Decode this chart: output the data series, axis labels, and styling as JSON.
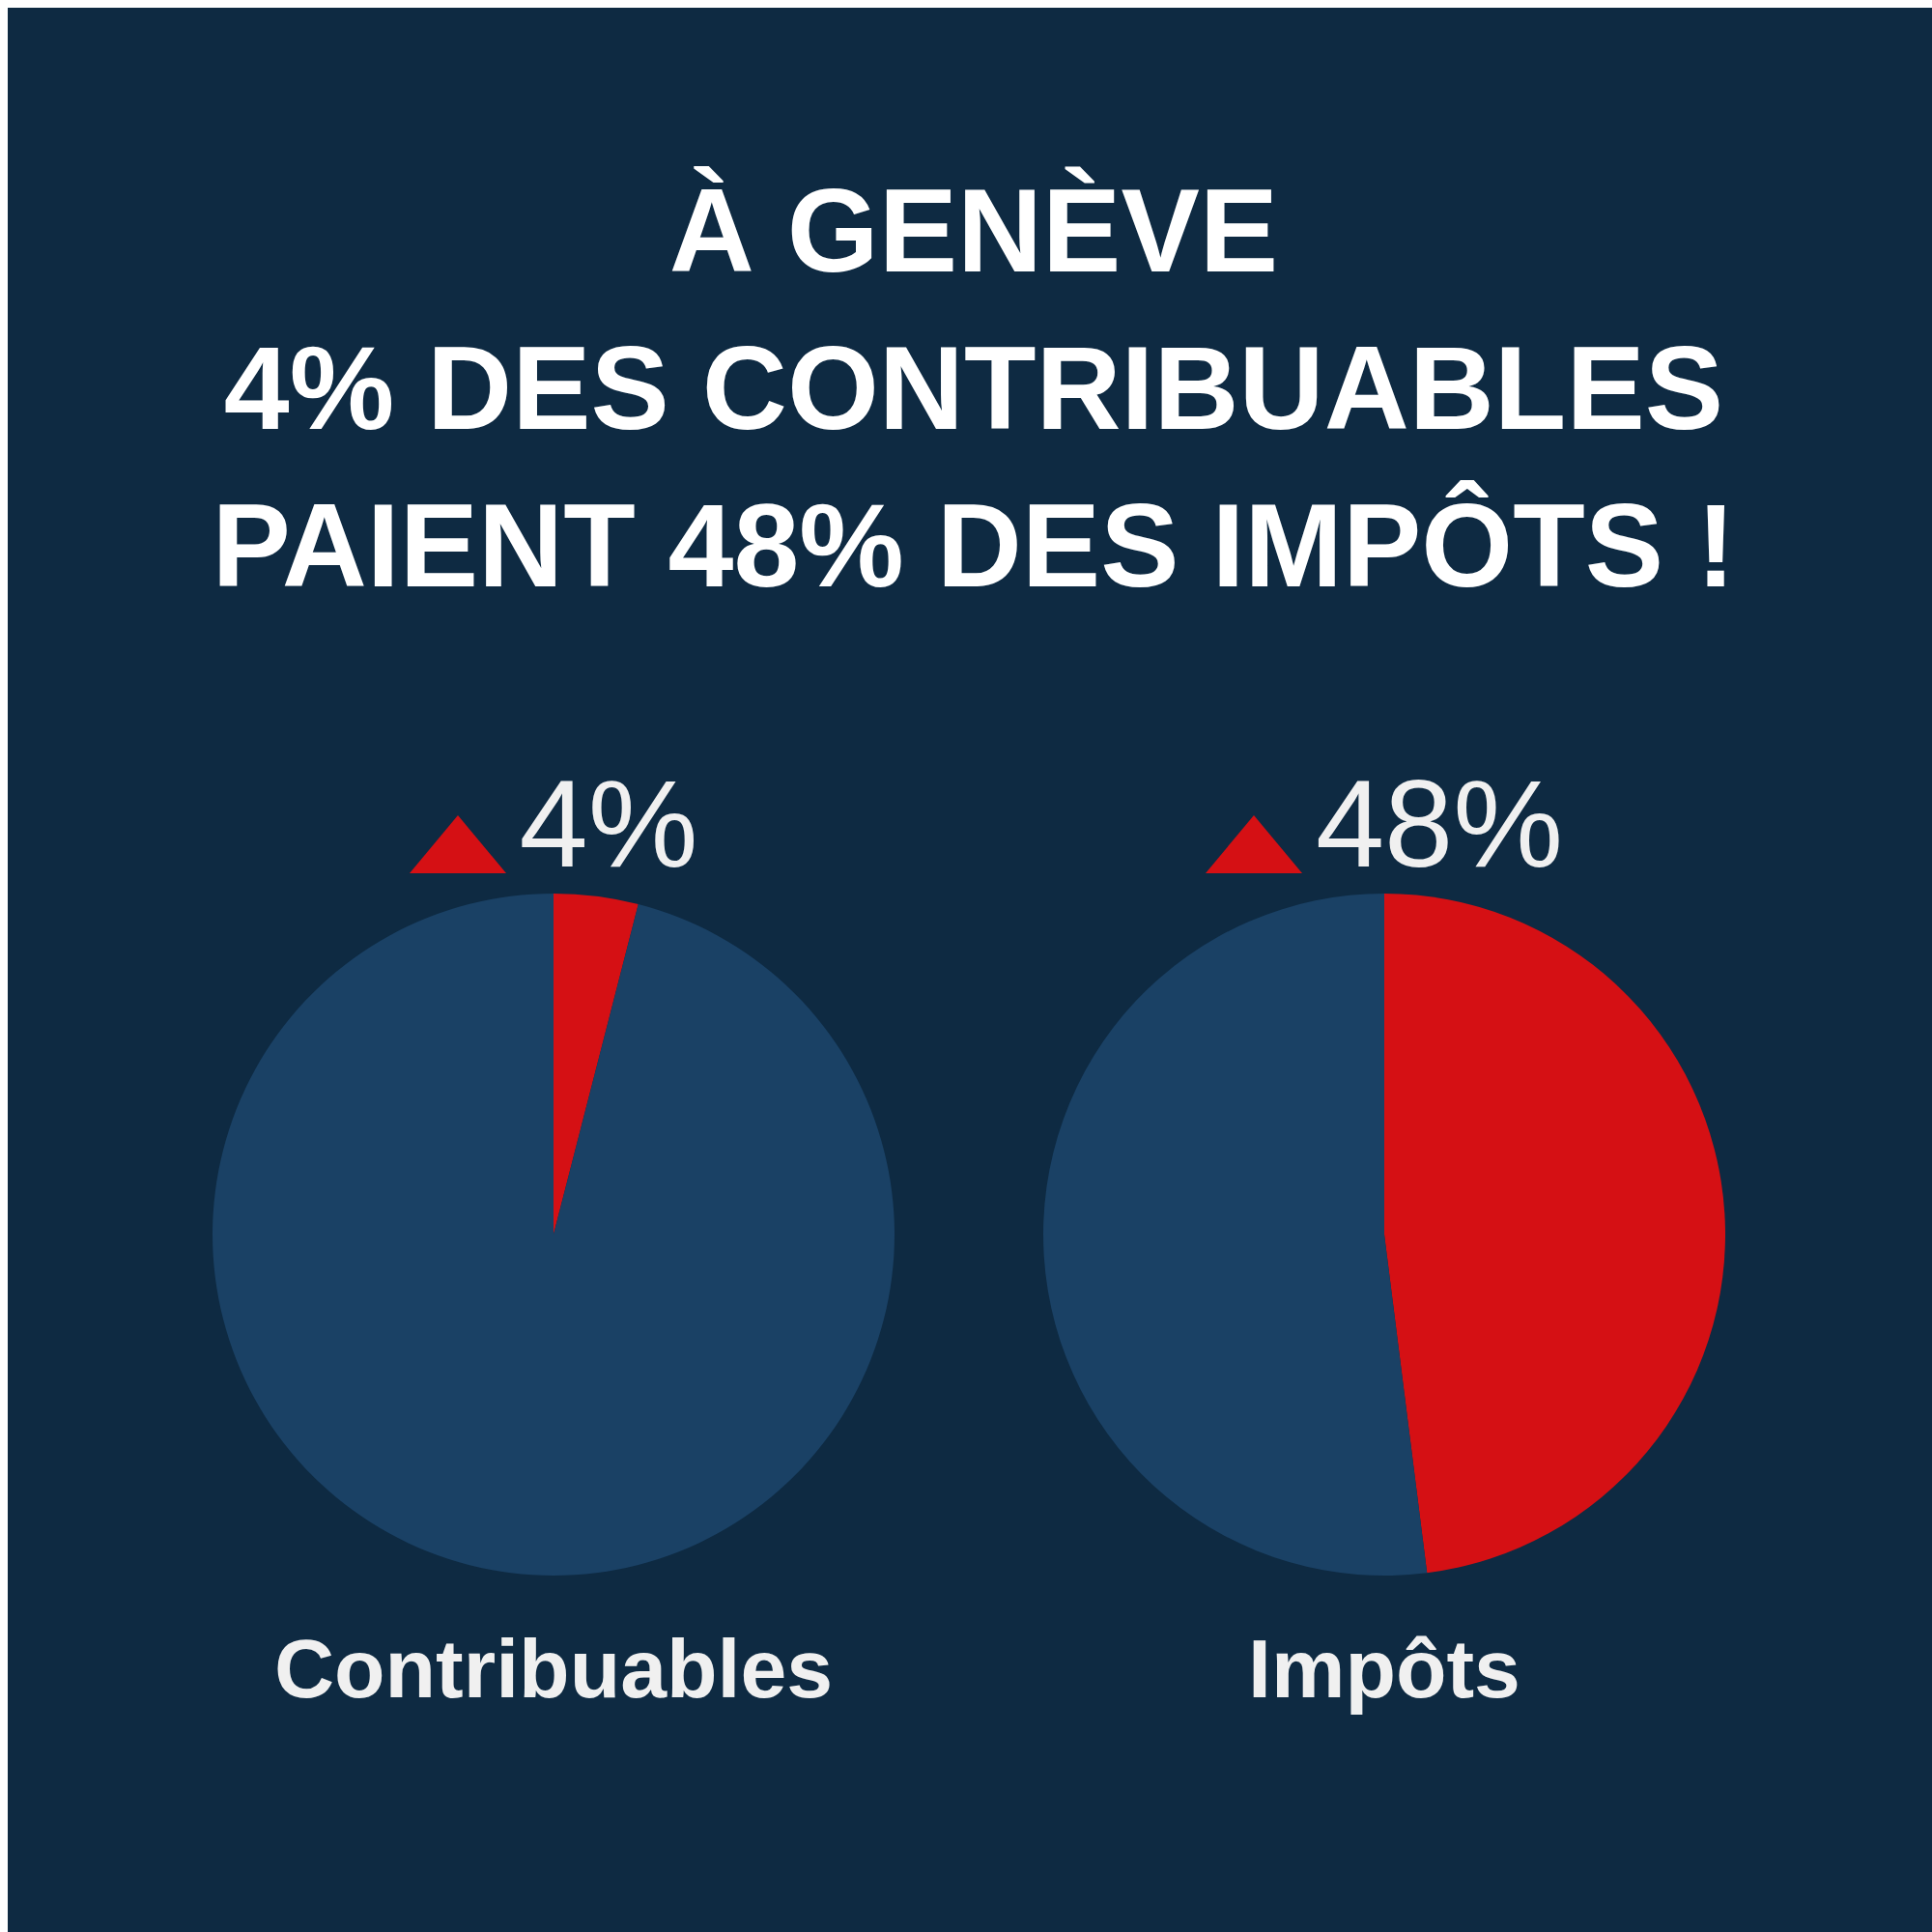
{
  "chart_data": [
    {
      "type": "pie",
      "title": "À GENÈVE\n4% DES CONTRIBUABLES\nPAIENT 48% DES IMPÔTS !",
      "xlabel": "Contribuables",
      "categories": [
        null,
        null
      ],
      "values": [
        4,
        96
      ],
      "colors": [
        "#d51014",
        "#1a4165"
      ],
      "value_labels": [
        "4%",
        null
      ]
    },
    {
      "type": "pie",
      "xlabel": "Impôts",
      "categories": [
        null,
        null
      ],
      "values": [
        48,
        52
      ],
      "colors": [
        "#d51014",
        "#1a4165"
      ],
      "value_labels": [
        "48%",
        null
      ]
    }
  ]
}
